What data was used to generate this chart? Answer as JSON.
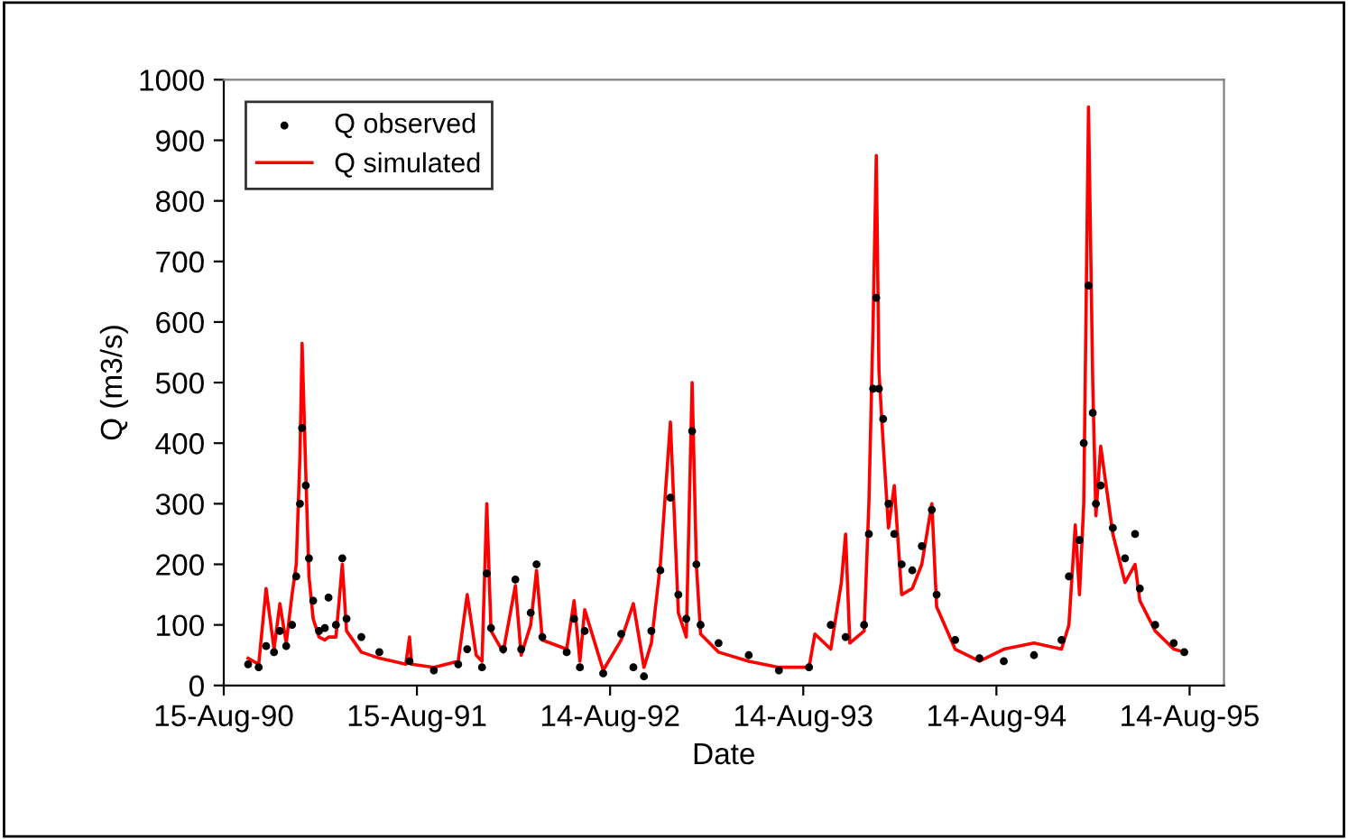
{
  "chart_data": {
    "type": "line",
    "xlabel": "Date",
    "ylabel": "Q (m3/s)",
    "xlim": [
      "1990-08-15",
      "1995-10-18"
    ],
    "ylim": [
      0,
      1000
    ],
    "xticks": [
      {
        "value": "1990-08-15",
        "label": "15-Aug-90"
      },
      {
        "value": "1991-08-15",
        "label": "15-Aug-91"
      },
      {
        "value": "1992-08-14",
        "label": "14-Aug-92"
      },
      {
        "value": "1993-08-14",
        "label": "14-Aug-93"
      },
      {
        "value": "1994-08-14",
        "label": "14-Aug-94"
      },
      {
        "value": "1995-08-14",
        "label": "14-Aug-95"
      }
    ],
    "yticks": [
      0,
      100,
      200,
      300,
      400,
      500,
      600,
      700,
      800,
      900,
      1000
    ],
    "grid": false,
    "legend": "top left",
    "series": [
      {
        "name": "Q observed",
        "type": "scatter",
        "marker": "circle",
        "color": "#000000",
        "x": [
          "1990-09-30",
          "1990-10-20",
          "1990-11-03",
          "1990-11-18",
          "1990-11-29",
          "1990-12-11",
          "1990-12-22",
          "1990-12-30",
          "1991-01-06",
          "1991-01-10",
          "1991-01-17",
          "1991-01-23",
          "1991-01-31",
          "1991-02-11",
          "1991-02-22",
          "1991-03-01",
          "1991-03-15",
          "1991-03-27",
          "1991-04-04",
          "1991-05-02",
          "1991-06-05",
          "1991-08-01",
          "1991-09-16",
          "1991-11-01",
          "1991-11-18",
          "1991-12-16",
          "1991-12-25",
          "1992-01-02",
          "1992-01-25",
          "1992-02-17",
          "1992-02-28",
          "1992-03-17",
          "1992-03-28",
          "1992-04-08",
          "1992-05-24",
          "1992-06-07",
          "1992-06-18",
          "1992-06-27",
          "1992-08-01",
          "1992-09-04",
          "1992-09-27",
          "1992-10-17",
          "1992-10-31",
          "1992-11-17",
          "1992-12-06",
          "1992-12-21",
          "1993-01-05",
          "1993-01-16",
          "1993-01-24",
          "1993-02-01",
          "1993-03-07",
          "1993-05-03",
          "1993-06-29",
          "1993-08-25",
          "1993-10-05",
          "1993-11-02",
          "1993-12-07",
          "1993-12-16",
          "1993-12-24",
          "1993-12-30",
          "1994-01-04",
          "1994-01-12",
          "1994-01-22",
          "1994-02-02",
          "1994-02-16",
          "1994-03-08",
          "1994-03-26",
          "1994-04-14",
          "1994-04-23",
          "1994-05-28",
          "1994-07-13",
          "1994-08-28",
          "1994-10-24",
          "1994-12-15",
          "1994-12-29",
          "1995-01-18",
          "1995-01-26",
          "1995-02-04",
          "1995-02-12",
          "1995-02-18",
          "1995-02-27",
          "1995-03-22",
          "1995-04-14",
          "1995-05-03",
          "1995-05-12",
          "1995-06-10",
          "1995-07-15",
          "1995-08-04"
        ],
        "values": [
          35,
          30,
          65,
          55,
          90,
          65,
          100,
          180,
          300,
          425,
          330,
          210,
          140,
          90,
          95,
          145,
          100,
          210,
          110,
          80,
          55,
          40,
          25,
          35,
          60,
          30,
          185,
          95,
          60,
          175,
          60,
          120,
          200,
          80,
          55,
          110,
          30,
          90,
          20,
          85,
          30,
          15,
          90,
          190,
          310,
          150,
          110,
          420,
          200,
          100,
          70,
          50,
          25,
          30,
          100,
          80,
          100,
          250,
          490,
          640,
          490,
          440,
          300,
          250,
          200,
          190,
          230,
          290,
          150,
          75,
          45,
          40,
          50,
          75,
          180,
          240,
          400,
          660,
          450,
          300,
          330,
          260,
          210,
          250,
          160,
          100,
          70,
          55
        ]
      },
      {
        "name": "Q simulated",
        "color": "#ff0000",
        "line_style": "solid",
        "x": [
          "1990-09-30",
          "1990-10-20",
          "1990-11-03",
          "1990-11-18",
          "1990-11-29",
          "1990-12-11",
          "1990-12-22",
          "1990-12-30",
          "1991-01-06",
          "1991-01-10",
          "1991-01-17",
          "1991-01-23",
          "1991-01-31",
          "1991-02-11",
          "1991-02-22",
          "1991-03-01",
          "1991-03-15",
          "1991-03-27",
          "1991-04-04",
          "1991-05-02",
          "1991-06-05",
          "1991-07-25",
          "1991-08-01",
          "1991-08-05",
          "1991-09-16",
          "1991-11-01",
          "1991-11-18",
          "1991-12-05",
          "1991-12-16",
          "1991-12-25",
          "1992-01-02",
          "1992-01-25",
          "1992-02-17",
          "1992-02-28",
          "1992-03-17",
          "1992-03-28",
          "1992-04-08",
          "1992-05-24",
          "1992-06-07",
          "1992-06-18",
          "1992-06-27",
          "1992-08-01",
          "1992-09-04",
          "1992-09-27",
          "1992-10-17",
          "1992-10-31",
          "1992-11-17",
          "1992-12-06",
          "1992-12-21",
          "1993-01-05",
          "1993-01-16",
          "1993-01-24",
          "1993-02-01",
          "1993-03-07",
          "1993-05-03",
          "1993-06-29",
          "1993-08-25",
          "1993-09-05",
          "1993-10-05",
          "1993-10-25",
          "1993-11-02",
          "1993-11-10",
          "1993-12-07",
          "1993-12-16",
          "1993-12-24",
          "1993-12-30",
          "1994-01-04",
          "1994-01-12",
          "1994-01-22",
          "1994-02-02",
          "1994-02-16",
          "1994-03-08",
          "1994-03-26",
          "1994-04-14",
          "1994-04-23",
          "1994-05-28",
          "1994-07-13",
          "1994-08-28",
          "1994-10-24",
          "1994-12-15",
          "1994-12-29",
          "1995-01-10",
          "1995-01-18",
          "1995-01-26",
          "1995-02-04",
          "1995-02-12",
          "1995-02-18",
          "1995-02-27",
          "1995-03-22",
          "1995-04-14",
          "1995-05-03",
          "1995-05-12",
          "1995-06-10",
          "1995-07-15",
          "1995-08-04"
        ],
        "values": [
          45,
          35,
          160,
          60,
          135,
          70,
          150,
          200,
          380,
          565,
          350,
          180,
          110,
          80,
          75,
          80,
          80,
          200,
          90,
          55,
          45,
          35,
          80,
          35,
          30,
          40,
          150,
          50,
          40,
          300,
          90,
          55,
          165,
          50,
          100,
          190,
          75,
          60,
          140,
          40,
          125,
          25,
          75,
          135,
          30,
          70,
          200,
          435,
          120,
          80,
          500,
          200,
          85,
          55,
          40,
          30,
          30,
          85,
          60,
          170,
          250,
          70,
          90,
          300,
          600,
          875,
          520,
          400,
          260,
          330,
          150,
          160,
          200,
          300,
          130,
          60,
          40,
          60,
          70,
          60,
          100,
          265,
          150,
          300,
          955,
          500,
          280,
          395,
          250,
          170,
          200,
          140,
          90,
          60,
          55
        ]
      }
    ]
  }
}
